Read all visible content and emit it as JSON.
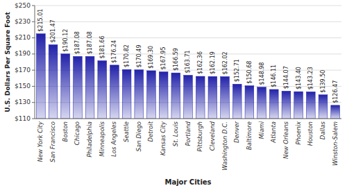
{
  "chart_data": {
    "type": "bar",
    "xlabel": "Major Cities",
    "ylabel": "U.S. Dollars Per Square Foot",
    "categories": [
      "New York City",
      "San Francisco",
      "Boston",
      "Chicago",
      "Philadelphia",
      "Minneapolis",
      "Los Angeles",
      "Seattle",
      "San Diego",
      "Detroit",
      "Kansas City",
      "St. Louis",
      "Portland",
      "Pittsburgh",
      "Cleveland",
      "Washington D.C.",
      "Denver",
      "Baltimore",
      "Miami",
      "Atlanta",
      "New Orleans",
      "Phoenix",
      "Houston",
      "Dallas",
      "Winston-Salem"
    ],
    "values": [
      215.01,
      201.47,
      190.12,
      187.08,
      187.08,
      181.66,
      176.24,
      170.82,
      170.49,
      169.3,
      167.95,
      166.59,
      163.71,
      162.36,
      162.19,
      162.02,
      152.71,
      150.68,
      148.98,
      146.11,
      144.07,
      143.4,
      143.23,
      139.5,
      126.47
    ],
    "value_labels": [
      "$215.01",
      "$201.47",
      "$190.12",
      "$187.08",
      "$187.08",
      "$181.66",
      "$176.24",
      "$170.82",
      "$170.49",
      "$169.30",
      "$167.95",
      "$166.59",
      "$163.71",
      "$162.36",
      "$162.19",
      "$162.02",
      "$152.71",
      "$150.68",
      "$148.98",
      "$146.11",
      "$144.07",
      "$143.40",
      "$143.23",
      "$139.50",
      "$126.47"
    ],
    "data_labels": true,
    "color": "#2222aa",
    "ylim": [
      110,
      250
    ],
    "yticks": [
      {
        "value": 110,
        "label": "$110"
      },
      {
        "value": 130,
        "label": "$130"
      },
      {
        "value": 150,
        "label": "$150"
      },
      {
        "value": 170,
        "label": "$170"
      },
      {
        "value": 190,
        "label": "$190"
      },
      {
        "value": 210,
        "label": "$210"
      },
      {
        "value": 230,
        "label": "$230"
      },
      {
        "value": 250,
        "label": "$250"
      }
    ],
    "grid": true
  }
}
